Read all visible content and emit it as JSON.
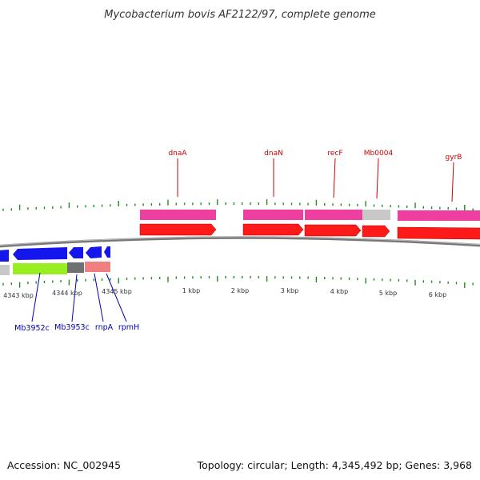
{
  "title": "Mycobacterium bovis AF2122/97, complete genome",
  "footer": {
    "accession": "Accession: NC_002945",
    "topology": "Topology: circular; Length: 4,345,492 bp; Genes: 3,968"
  },
  "scale_labels": [
    "4343 kbp",
    "4344 kbp",
    "4345 kbp",
    "1 kbp",
    "2 kbp",
    "3 kbp",
    "4 kbp",
    "5 kbp",
    "6 kbp"
  ],
  "top_genes": [
    "dnaA",
    "dnaN",
    "recF",
    "Mb0004",
    "gyrB"
  ],
  "bottom_genes": [
    "Mb3952c",
    "Mb3953c",
    "rnpA",
    "rpmH"
  ],
  "colors": {
    "cds_forward": "#ff1a1a",
    "gene_forward": "#ee3fa0",
    "cds_reverse": "#1515ee",
    "gene_reverse": "#99ee22",
    "pseudo": "#c8c8c8",
    "dark_segment": "#707070",
    "rna": "#f08080",
    "backbone": "#888888",
    "ticks": "#228b22",
    "top_label": "#cc0000",
    "bottom_label": "#0000aa"
  }
}
